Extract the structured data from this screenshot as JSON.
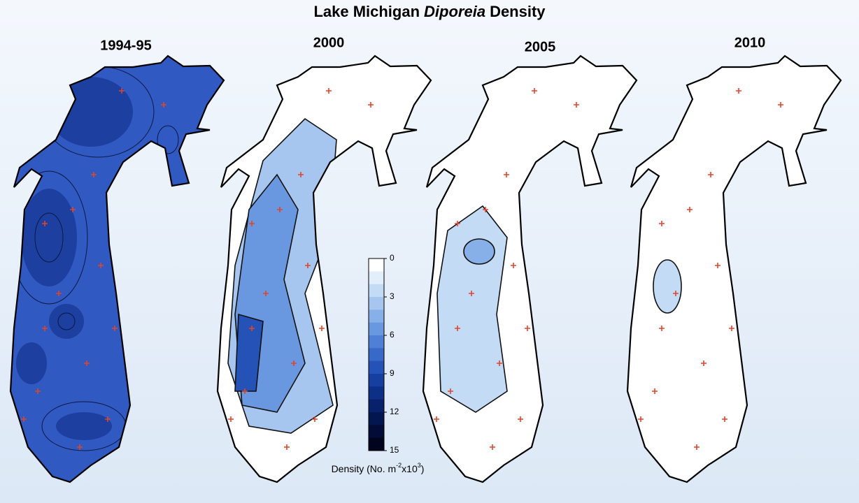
{
  "title_parts": [
    "Lake Michigan",
    "Diporeia",
    "Density"
  ],
  "panels": [
    {
      "label": "1994-95"
    },
    {
      "label": "2000"
    },
    {
      "label": "2005"
    },
    {
      "label": "2010"
    }
  ],
  "colorbar": {
    "lim": [
      0,
      15
    ],
    "ticks": [
      0,
      3,
      6,
      9,
      12,
      15
    ],
    "colors": [
      "#ffffff",
      "#e3eefb",
      "#c4dbf5",
      "#a6c6ef",
      "#88b0e8",
      "#6a98e0",
      "#4f80d6",
      "#3868c8",
      "#2552b6",
      "#173f9f",
      "#0e2f86",
      "#08216b",
      "#041650",
      "#020c36",
      "#00041c"
    ],
    "label_parts": [
      "Density (No. m",
      "-2",
      "x10",
      "3",
      ")"
    ]
  }
}
